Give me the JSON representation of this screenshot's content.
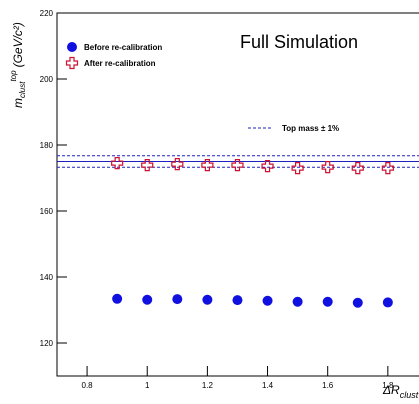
{
  "chart_data": {
    "type": "scatter",
    "title": "Full Simulation",
    "x_label": {
      "base": "ΔR",
      "sub": "clust"
    },
    "y_label": {
      "base": "m",
      "sub": "clust",
      "sup": "top",
      "unit": "(GeV/c²)"
    },
    "x": [
      0.9,
      1.0,
      1.1,
      1.2,
      1.3,
      1.4,
      1.5,
      1.6,
      1.7,
      1.8
    ],
    "series": [
      {
        "name": "Before re-calibration",
        "color": "#1010e0",
        "marker": "circle",
        "values": [
          133.4,
          133.1,
          133.3,
          133.1,
          133.0,
          132.8,
          132.5,
          132.5,
          132.2,
          132.3
        ]
      },
      {
        "name": "After re-calibration",
        "color": "#d01030",
        "marker": "open-cross",
        "values": [
          174.5,
          173.9,
          174.2,
          173.9,
          173.9,
          173.6,
          173.0,
          173.3,
          173.0,
          173.0
        ]
      }
    ],
    "reference": {
      "name": "Top mass ± 1%",
      "color": "#2020c0",
      "center": 175,
      "upper": 176.75,
      "lower": 173.25
    },
    "xlim": [
      0.7,
      2.0
    ],
    "ylim": [
      110,
      220
    ],
    "xticks": [
      0.8,
      1,
      1.2,
      1.4,
      1.6,
      1.8
    ],
    "yticks": [
      120,
      140,
      160,
      180,
      200,
      220
    ]
  }
}
